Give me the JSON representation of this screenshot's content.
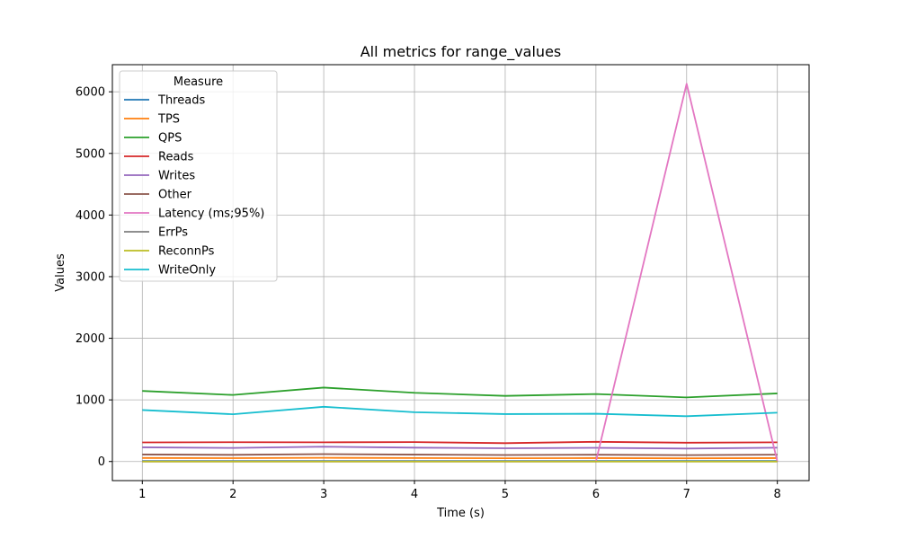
{
  "chart_data": {
    "type": "line",
    "title": "All metrics for range_values",
    "xlabel": "Time (s)",
    "ylabel": "Values",
    "xlim": [
      0.67,
      8.35
    ],
    "ylim": [
      -310,
      6440
    ],
    "xticks": [
      1,
      2,
      3,
      4,
      5,
      6,
      7,
      8
    ],
    "yticks": [
      0,
      1000,
      2000,
      3000,
      4000,
      5000,
      6000
    ],
    "grid": true,
    "legend": {
      "title": "Measure",
      "position": "top-left"
    },
    "x": [
      1,
      2,
      3,
      4,
      5,
      6,
      7,
      8
    ],
    "series": [
      {
        "name": "Threads",
        "color": "#1f77b4",
        "values": [
          8,
          8,
          8,
          8,
          8,
          8,
          8,
          8
        ]
      },
      {
        "name": "TPS",
        "color": "#ff7f0e",
        "values": [
          57,
          54,
          60,
          56,
          53,
          55,
          52,
          55
        ]
      },
      {
        "name": "QPS",
        "color": "#2ca02c",
        "values": [
          1145,
          1080,
          1200,
          1115,
          1065,
          1095,
          1040,
          1105
        ]
      },
      {
        "name": "Reads",
        "color": "#d62728",
        "values": [
          310,
          313,
          312,
          315,
          298,
          320,
          305,
          312
        ]
      },
      {
        "name": "Writes",
        "color": "#9467bd",
        "values": [
          230,
          220,
          240,
          225,
          215,
          222,
          210,
          224
        ]
      },
      {
        "name": "Other",
        "color": "#8c564b",
        "values": [
          114,
          108,
          120,
          112,
          106,
          110,
          104,
          111
        ]
      },
      {
        "name": "Latency (ms;95%)",
        "color": "#e377c2",
        "values": [
          0,
          0,
          0,
          0,
          0,
          0,
          6130,
          0
        ]
      },
      {
        "name": "ErrPs",
        "color": "#7f7f7f",
        "values": [
          0,
          0,
          0,
          0,
          0,
          0,
          0,
          0
        ]
      },
      {
        "name": "ReconnPs",
        "color": "#bcbd22",
        "values": [
          0,
          0,
          0,
          0,
          0,
          0,
          0,
          0
        ]
      },
      {
        "name": "WriteOnly",
        "color": "#17becf",
        "values": [
          835,
          767,
          888,
          800,
          770,
          775,
          735,
          793
        ]
      }
    ]
  }
}
